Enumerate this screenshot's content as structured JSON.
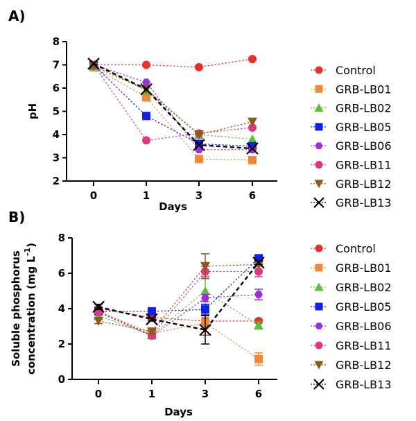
{
  "chart_data": [
    {
      "type": "line",
      "panel_label": "A)",
      "title": "",
      "xlabel": "Days",
      "ylabel": "pH",
      "x": [
        0,
        1,
        3,
        6
      ],
      "x_tick_labels": [
        "0",
        "1",
        "3",
        "6"
      ],
      "ylim": [
        2,
        8
      ],
      "y_ticks": [
        2,
        3,
        4,
        5,
        6,
        7,
        8
      ],
      "grid": false,
      "legend_position": "right",
      "series": [
        {
          "name": "Control",
          "color": "#e8312a",
          "marker": "circle",
          "values": [
            7.0,
            7.0,
            6.9,
            7.25
          ]
        },
        {
          "name": "GRB-LB01",
          "color": "#f0883a",
          "marker": "square",
          "values": [
            6.9,
            5.6,
            2.95,
            2.9
          ]
        },
        {
          "name": "GRB-LB02",
          "color": "#5cbf3a",
          "marker": "triangle-up",
          "values": [
            6.95,
            5.9,
            4.0,
            3.8
          ]
        },
        {
          "name": "GRB-LB05",
          "color": "#1020e8",
          "marker": "square",
          "values": [
            7.0,
            4.8,
            3.6,
            3.5
          ]
        },
        {
          "name": "GRB-LB06",
          "color": "#9b2fd6",
          "marker": "hexagon",
          "values": [
            7.0,
            6.25,
            3.35,
            3.35
          ]
        },
        {
          "name": "GRB-LB11",
          "color": "#e0357f",
          "marker": "circle",
          "values": [
            7.0,
            3.75,
            4.05,
            4.3
          ]
        },
        {
          "name": "GRB-LB12",
          "color": "#8b5a20",
          "marker": "triangle-down",
          "values": [
            6.95,
            5.95,
            4.0,
            4.55
          ]
        },
        {
          "name": "GRB-LB13",
          "color": "#000000",
          "marker": "x",
          "values": [
            7.05,
            5.95,
            3.55,
            3.4
          ]
        }
      ]
    },
    {
      "type": "line",
      "panel_label": "B)",
      "title": "",
      "xlabel": "Days",
      "ylabel_line1": "Soluble phosphorus",
      "ylabel_line2": "concentration (mg L",
      "ylabel_sup": "-1",
      "ylabel_close": ")",
      "x": [
        0,
        1,
        3,
        6
      ],
      "x_tick_labels": [
        "0",
        "1",
        "3",
        "6"
      ],
      "ylim": [
        0,
        8
      ],
      "y_ticks": [
        0,
        2,
        4,
        6,
        8
      ],
      "grid": false,
      "legend_position": "right",
      "series": [
        {
          "name": "Control",
          "color": "#e8312a",
          "marker": "circle",
          "values": [
            4.0,
            3.5,
            3.3,
            3.3
          ],
          "errors": [
            0.1,
            0.1,
            0.8,
            0.1
          ]
        },
        {
          "name": "GRB-LB01",
          "color": "#f0883a",
          "marker": "square",
          "values": [
            3.85,
            2.6,
            3.2,
            1.15
          ],
          "errors": [
            0.15,
            0.2,
            0.3,
            0.35
          ]
        },
        {
          "name": "GRB-LB02",
          "color": "#5cbf3a",
          "marker": "triangle-up",
          "values": [
            3.6,
            2.5,
            5.0,
            3.05
          ],
          "errors": [
            0.15,
            0.1,
            0.8,
            0.2
          ]
        },
        {
          "name": "GRB-LB05",
          "color": "#1020e8",
          "marker": "square",
          "values": [
            3.85,
            3.85,
            3.95,
            6.85
          ],
          "errors": [
            0.1,
            0.1,
            0.3,
            0.1
          ]
        },
        {
          "name": "GRB-LB06",
          "color": "#9b2fd6",
          "marker": "hexagon",
          "values": [
            3.8,
            2.45,
            4.6,
            4.8
          ],
          "errors": [
            0.1,
            0.1,
            0.2,
            0.3
          ]
        },
        {
          "name": "GRB-LB11",
          "color": "#e0357f",
          "marker": "circle",
          "values": [
            3.85,
            2.5,
            6.1,
            6.1
          ],
          "errors": [
            0.1,
            0.1,
            0.3,
            0.3
          ]
        },
        {
          "name": "GRB-LB12",
          "color": "#8b5a20",
          "marker": "triangle-down",
          "values": [
            3.3,
            2.7,
            6.4,
            6.5
          ],
          "errors": [
            0.15,
            0.1,
            0.7,
            0.1
          ]
        },
        {
          "name": "GRB-LB13",
          "color": "#000000",
          "marker": "x",
          "values": [
            4.1,
            3.4,
            2.8,
            6.6
          ],
          "errors": [
            0.15,
            0.1,
            0.8,
            0.1
          ]
        }
      ]
    }
  ]
}
